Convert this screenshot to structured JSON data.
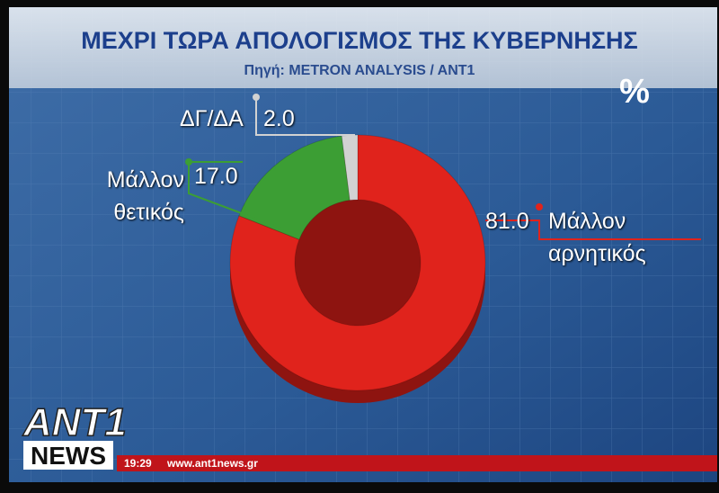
{
  "chart_data": {
    "type": "donut",
    "title": "ΜΕΧΡΙ ΤΩΡΑ ΑΠΟΛΟΓΙΣΜΟΣ ΤΗΣ ΚΥΒΕΡΝΗΣΗΣ",
    "subtitle": "Πηγή: METRON ANALYSIS / ANT1",
    "unit": "%",
    "categories": [
      "Μάλλον αρνητικός",
      "Μάλλον θετικός",
      "ΔΓ/ΔΑ"
    ],
    "values": [
      81.0,
      17.0,
      2.0
    ],
    "value_labels": [
      "81.0",
      "17.0",
      "2.0"
    ],
    "colors": [
      "#e0231c",
      "#3c9e34",
      "#d2d2d2"
    ]
  },
  "broadcast": {
    "logo": "ANT1",
    "logo_sub": "NEWS",
    "time": "19:29",
    "url": "www.ant1news.gr"
  }
}
